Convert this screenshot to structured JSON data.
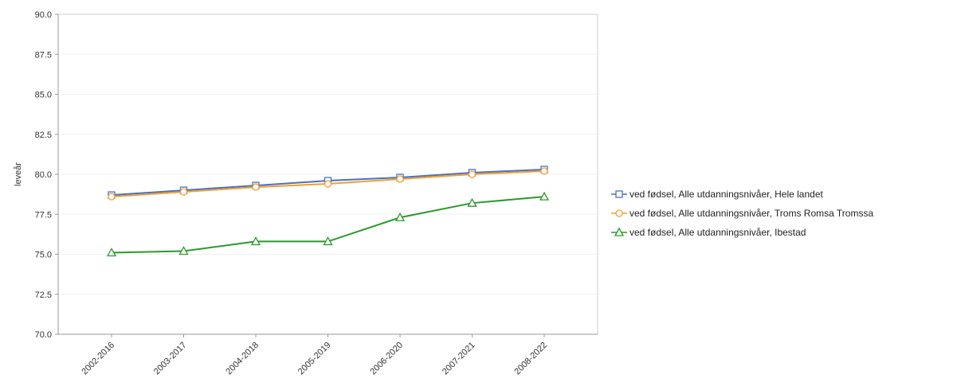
{
  "chart_data": {
    "type": "line",
    "categories": [
      "2002-2016",
      "2003-2017",
      "2004-2018",
      "2005-2019",
      "2006-2020",
      "2007-2021",
      "2008-2022"
    ],
    "ylabel": "leveår",
    "ylim": [
      70.0,
      90.0
    ],
    "yticks": [
      "70.0",
      "72.5",
      "75.0",
      "77.5",
      "80.0",
      "82.5",
      "85.0",
      "87.5",
      "90.0"
    ],
    "grid": true,
    "legend_position": "right",
    "series": [
      {
        "name": "ved fødsel, Alle utdanningsnivåer, Hele landet",
        "color": "#4a6fc2",
        "marker": "square",
        "values": [
          78.7,
          79.0,
          79.3,
          79.6,
          79.8,
          80.1,
          80.3
        ]
      },
      {
        "name": "ved fødsel, Alle utdanningsnivåer, Troms Romsa Tromssa",
        "color": "#f0a030",
        "marker": "circle",
        "values": [
          78.6,
          78.9,
          79.2,
          79.4,
          79.7,
          80.0,
          80.2
        ]
      },
      {
        "name": "ved fødsel, Alle utdanningsnivåer, Ibestad",
        "color": "#2a9a2a",
        "marker": "triangle",
        "values": [
          75.1,
          75.2,
          75.8,
          75.8,
          77.3,
          78.2,
          78.6
        ]
      }
    ]
  }
}
